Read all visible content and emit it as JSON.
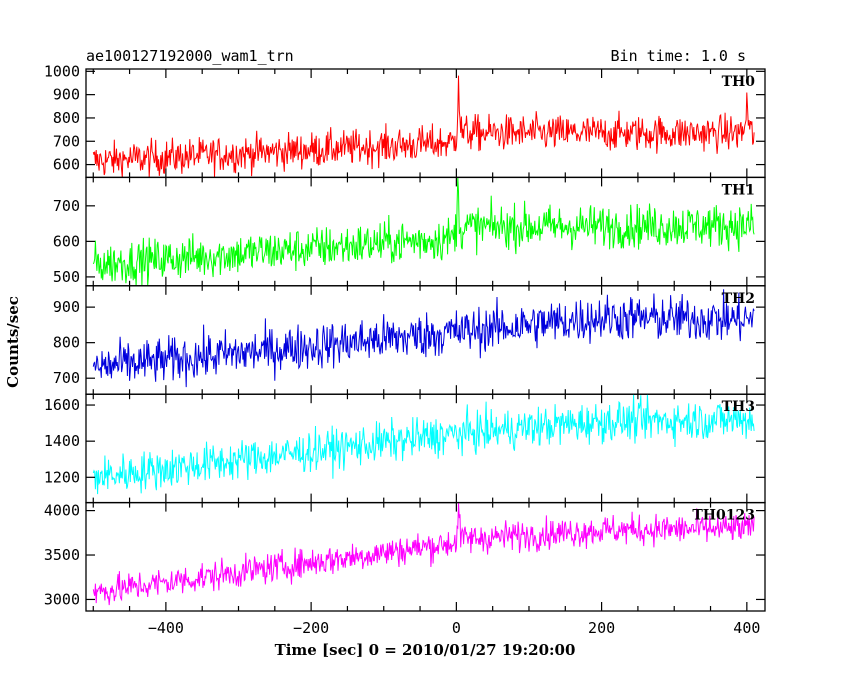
{
  "header": {
    "left_title": "ae100127192000_wam1_trn",
    "right_title": "Bin time: 1.0 s"
  },
  "chart_data": {
    "type": "line",
    "xlabel": "Time [sec] 0 = 2010/01/27 19:20:00",
    "ylabel": "Counts/sec",
    "xlim": [
      -510,
      425
    ],
    "xticks": [
      -400,
      -200,
      0,
      200,
      400
    ],
    "bin_time_s": 1.0,
    "panels": [
      {
        "name": "TH0",
        "color": "#ff0000",
        "ylim": [
          545,
          1010
        ],
        "yticks": [
          600,
          700,
          800,
          900,
          1000
        ],
        "trend": [
          {
            "x": -500,
            "y": 615
          },
          {
            "x": 0,
            "y": 695
          },
          {
            "x": 10,
            "y": 735
          },
          {
            "x": 410,
            "y": 735
          }
        ],
        "noise": 38,
        "spikes": [
          {
            "x": 3,
            "y": 1010
          },
          {
            "x": 400,
            "y": 900
          }
        ]
      },
      {
        "name": "TH1",
        "color": "#00ff00",
        "ylim": [
          475,
          780
        ],
        "yticks": [
          500,
          600,
          700
        ],
        "trend": [
          {
            "x": -500,
            "y": 535
          },
          {
            "x": 0,
            "y": 610
          },
          {
            "x": 10,
            "y": 640
          },
          {
            "x": 410,
            "y": 645
          }
        ],
        "noise": 30,
        "spikes": [
          {
            "x": 2,
            "y": 770
          }
        ]
      },
      {
        "name": "TH2",
        "color": "#0000dd",
        "ylim": [
          655,
          960
        ],
        "yticks": [
          700,
          800,
          900
        ],
        "trend": [
          {
            "x": -500,
            "y": 730
          },
          {
            "x": 0,
            "y": 830
          },
          {
            "x": 200,
            "y": 870
          },
          {
            "x": 410,
            "y": 865
          }
        ],
        "noise": 32,
        "spikes": []
      },
      {
        "name": "TH3",
        "color": "#00ffff",
        "ylim": [
          1060,
          1660
        ],
        "yticks": [
          1200,
          1400,
          1600
        ],
        "trend": [
          {
            "x": -500,
            "y": 1200
          },
          {
            "x": 0,
            "y": 1440
          },
          {
            "x": 200,
            "y": 1510
          },
          {
            "x": 410,
            "y": 1520
          }
        ],
        "noise": 55,
        "spikes": []
      },
      {
        "name": "TH0123",
        "color": "#ff00ff",
        "ylim": [
          2870,
          4090
        ],
        "yticks": [
          3000,
          3500,
          4000
        ],
        "trend": [
          {
            "x": -500,
            "y": 3080
          },
          {
            "x": 0,
            "y": 3640
          },
          {
            "x": 10,
            "y": 3680
          },
          {
            "x": 200,
            "y": 3780
          },
          {
            "x": 410,
            "y": 3800
          }
        ],
        "noise": 85,
        "spikes": [
          {
            "x": 3,
            "y": 4060
          }
        ]
      }
    ]
  }
}
